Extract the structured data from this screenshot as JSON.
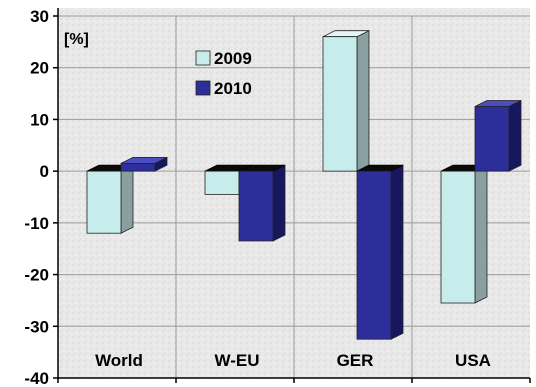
{
  "chart_data": {
    "type": "bar",
    "unit_label": "[%]",
    "categories": [
      "World",
      "W-EU",
      "GER",
      "USA"
    ],
    "series": [
      {
        "name": "2009",
        "values": [
          -12,
          -4.5,
          26,
          -25.5
        ]
      },
      {
        "name": "2010",
        "values": [
          1.5,
          -13.5,
          -32.5,
          12.5
        ]
      }
    ],
    "ylim": [
      -40,
      30
    ],
    "yticks": [
      -40,
      -30,
      -20,
      -10,
      0,
      10,
      20,
      30
    ],
    "grid": true,
    "legend_position": "top-left-inside",
    "colors": {
      "2009": {
        "front": "#c7ecec",
        "side": "#8a9f9f",
        "top": "#e4f6f6"
      },
      "2010": {
        "front": "#2e2e9a",
        "side": "#17175e",
        "top": "#4d4dc2"
      },
      "background": "#e6e6e6",
      "grid": "#9a9a9a"
    }
  }
}
